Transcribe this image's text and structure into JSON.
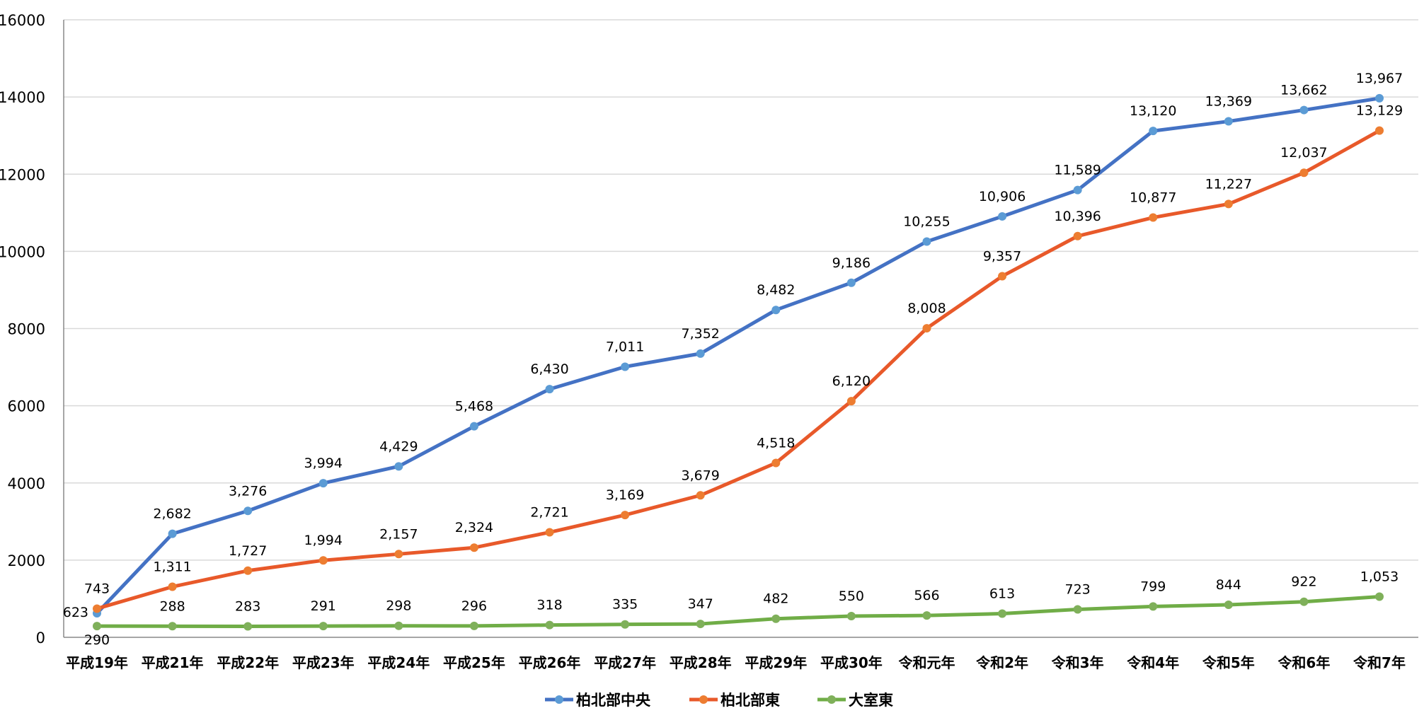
{
  "chart_data": {
    "type": "line",
    "categories": [
      "平成19年",
      "平成21年",
      "平成22年",
      "平成23年",
      "平成24年",
      "平成25年",
      "平成26年",
      "平成27年",
      "平成28年",
      "平成29年",
      "平成30年",
      "令和元年",
      "令和2年",
      "令和3年",
      "令和4年",
      "令和5年",
      "令和6年",
      "令和7年"
    ],
    "series": [
      {
        "name": "柏北部中央",
        "color": "#4472C4",
        "marker": "#5B9BD5",
        "values": [
          623,
          2682,
          3276,
          3994,
          4429,
          5468,
          6430,
          7011,
          7352,
          8482,
          9186,
          10255,
          10906,
          11589,
          13120,
          13369,
          13662,
          13967
        ]
      },
      {
        "name": "柏北部東",
        "color": "#E8592A",
        "marker": "#ED7D31",
        "values": [
          743,
          1311,
          1727,
          1994,
          2157,
          2324,
          2721,
          3169,
          3679,
          4518,
          6120,
          8008,
          9357,
          10396,
          10877,
          11227,
          12037,
          13129
        ]
      },
      {
        "name": "大室東",
        "color": "#70AD47",
        "marker": "#7FB05A",
        "values": [
          290,
          288,
          283,
          291,
          298,
          296,
          318,
          335,
          347,
          482,
          550,
          566,
          613,
          723,
          799,
          844,
          922,
          1053
        ]
      }
    ],
    "ylim": [
      0,
      16000
    ],
    "yticks": [
      "0",
      "2000",
      "4000",
      "6000",
      "8000",
      "10000",
      "12000",
      "14000",
      "16000"
    ],
    "grid": true,
    "legend": "bottom",
    "data_labels": true
  }
}
